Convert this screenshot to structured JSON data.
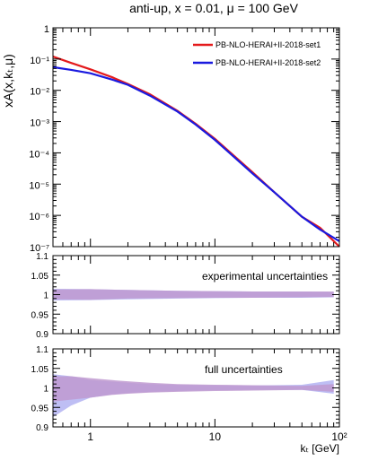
{
  "title": "anti-up, x = 0.01, μ = 100 GeV",
  "chart_data": [
    {
      "type": "line",
      "scale": {
        "x": "log",
        "y": "log"
      },
      "xlim": [
        0.5,
        100
      ],
      "ylim": [
        1e-07,
        1
      ],
      "ylabel": "xA(x,kₜ,μ)",
      "x_tick_labels": [
        "1",
        "10",
        "10²"
      ],
      "y_tick_labels": [
        "1",
        "10⁻¹",
        "10⁻²",
        "10⁻³",
        "10⁻⁴",
        "10⁻⁵",
        "10⁻⁶",
        "10⁻⁷"
      ],
      "legend_position": "top-right",
      "series": [
        {
          "name": "PB-NLO-HERAI+II-2018-set1",
          "color": "#e41a1c",
          "x": [
            0.5,
            0.7,
            1,
            1.5,
            2,
            3,
            5,
            7,
            10,
            20,
            30,
            50,
            70,
            100
          ],
          "y": [
            0.12,
            0.075,
            0.047,
            0.026,
            0.016,
            0.0075,
            0.0022,
            0.00085,
            0.00028,
            2.4e-05,
            5.5e-06,
            9e-07,
            4e-07,
            1e-07
          ]
        },
        {
          "name": "PB-NLO-HERAI+II-2018-set2",
          "color": "#1a1adf",
          "x": [
            0.5,
            0.7,
            1,
            1.5,
            2,
            3,
            5,
            7,
            10,
            20,
            30,
            50,
            70,
            100
          ],
          "y": [
            0.055,
            0.045,
            0.035,
            0.022,
            0.015,
            0.0068,
            0.0021,
            0.0008,
            0.00026,
            2.2e-05,
            5.5e-06,
            9e-07,
            3.5e-07,
            1.5e-07
          ]
        }
      ]
    },
    {
      "type": "area",
      "scale": {
        "x": "log",
        "y": "linear"
      },
      "xlim": [
        0.5,
        100
      ],
      "ylim": [
        0.9,
        1.1
      ],
      "y_tick_labels": [
        "0.9",
        "0.95",
        "1",
        "1.05",
        "1.1"
      ],
      "annotation": "experimental uncertainties",
      "bands": [
        {
          "color": "#b3b3f2",
          "x": [
            0.5,
            1,
            2,
            5,
            10,
            20,
            50,
            90
          ],
          "lower": [
            0.985,
            0.986,
            0.988,
            0.99,
            0.991,
            0.992,
            0.992,
            0.993
          ],
          "upper": [
            1.015,
            1.014,
            1.012,
            1.01,
            1.009,
            1.008,
            1.008,
            1.007
          ]
        },
        {
          "color": "#c09ad0",
          "x": [
            0.5,
            1,
            2,
            5,
            10,
            20,
            50,
            90
          ],
          "lower": [
            0.988,
            0.987,
            0.99,
            0.991,
            0.992,
            0.992,
            0.993,
            0.994
          ],
          "upper": [
            1.013,
            1.014,
            1.012,
            1.01,
            1.009,
            1.008,
            1.008,
            1.008
          ]
        }
      ]
    },
    {
      "type": "area",
      "scale": {
        "x": "log",
        "y": "linear"
      },
      "xlim": [
        0.5,
        100
      ],
      "ylim": [
        0.9,
        1.1
      ],
      "y_tick_labels": [
        "0.9",
        "0.95",
        "1",
        "1.05",
        "1.1"
      ],
      "xlabel": "kₜ [GeV]",
      "annotation": "full uncertainties",
      "bands": [
        {
          "color": "#b3b3f2",
          "x": [
            0.5,
            0.7,
            1,
            1.5,
            2,
            3,
            5,
            10,
            20,
            50,
            90
          ],
          "lower": [
            0.925,
            0.955,
            0.975,
            0.983,
            0.987,
            0.99,
            0.992,
            0.994,
            0.995,
            0.995,
            0.985
          ],
          "upper": [
            1.035,
            1.03,
            1.02,
            1.016,
            1.013,
            1.01,
            1.008,
            1.007,
            1.006,
            1.008,
            1.02
          ]
        },
        {
          "color": "#c09ad0",
          "x": [
            0.5,
            0.7,
            1,
            1.5,
            2,
            3,
            5,
            10,
            20,
            50,
            90
          ],
          "lower": [
            0.965,
            0.97,
            0.975,
            0.982,
            0.985,
            0.988,
            0.99,
            0.992,
            0.993,
            0.995,
            0.99
          ],
          "upper": [
            1.03,
            1.03,
            1.025,
            1.02,
            1.017,
            1.013,
            1.01,
            1.008,
            1.007,
            1.005,
            1.01
          ]
        }
      ]
    }
  ]
}
